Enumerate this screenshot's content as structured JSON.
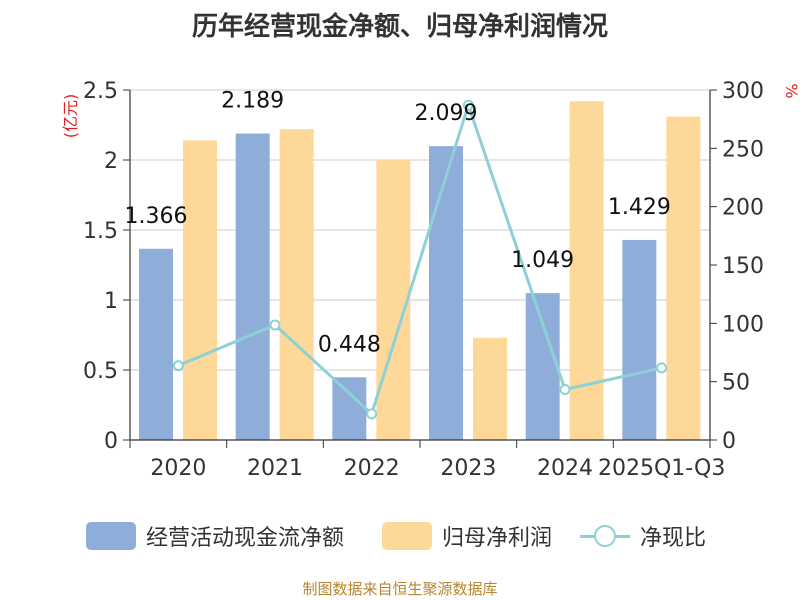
{
  "title": "历年经营现金净额、归母净利润情况",
  "source": "制图数据来自恒生聚源数据库",
  "colors": {
    "cash": "#8fadd9",
    "profit": "#fdd898",
    "ratio": "#8dd1d7",
    "axis_left_label": "#e02020",
    "axis_right_label": "#e02020",
    "grid": "#cccccc",
    "tick_text": "#333333"
  },
  "chart_data": {
    "type": "bar",
    "categories": [
      "2020",
      "2021",
      "2022",
      "2023",
      "2024",
      "2025Q1-Q3"
    ],
    "y_left": {
      "label": "(亿元)",
      "lim": [
        0,
        2.5
      ],
      "ticks": [
        "0",
        "0.5",
        "1",
        "1.5",
        "2",
        "2.5"
      ]
    },
    "y_right": {
      "label": "%",
      "lim": [
        0,
        300
      ],
      "ticks": [
        "0",
        "50",
        "100",
        "150",
        "200",
        "250",
        "300"
      ]
    },
    "grid": true,
    "legend_position": "bottom",
    "series": [
      {
        "name": "经营活动现金流净额",
        "type": "bar",
        "axis": "left",
        "values": [
          1.366,
          2.189,
          0.448,
          2.099,
          1.049,
          1.429
        ],
        "labels": [
          "1.366",
          "2.189",
          "0.448",
          "2.099",
          "1.049",
          "1.429"
        ]
      },
      {
        "name": "归母净利润",
        "type": "bar",
        "axis": "left",
        "values": [
          2.14,
          2.22,
          2.0,
          0.73,
          2.42,
          2.31
        ]
      },
      {
        "name": "净现比",
        "type": "line",
        "axis": "right",
        "values": [
          63.8,
          98.6,
          22.4,
          287,
          43.3,
          61.8
        ]
      }
    ]
  }
}
